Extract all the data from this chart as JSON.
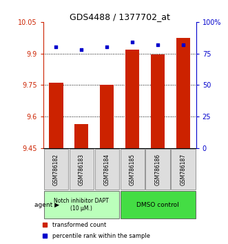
{
  "title": "GDS4488 / 1377702_at",
  "samples": [
    "GSM786182",
    "GSM786183",
    "GSM786184",
    "GSM786185",
    "GSM786186",
    "GSM786187"
  ],
  "bar_values": [
    9.76,
    9.565,
    9.75,
    9.92,
    9.895,
    9.975
  ],
  "dot_values_pct": [
    80,
    78,
    80,
    84,
    82,
    82
  ],
  "bar_bottom": 9.45,
  "ylim_left": [
    9.45,
    10.05
  ],
  "ylim_right": [
    0,
    100
  ],
  "yticks_left": [
    9.45,
    9.6,
    9.75,
    9.9,
    10.05
  ],
  "ytick_labels_left": [
    "9.45",
    "9.6",
    "9.75",
    "9.9",
    "10.05"
  ],
  "yticks_right": [
    0,
    25,
    50,
    75,
    100
  ],
  "ytick_labels_right": [
    "0",
    "25",
    "50",
    "75",
    "100%"
  ],
  "bar_color": "#cc2200",
  "dot_color": "#0000cc",
  "grid_color": "#000000",
  "group1_label": "Notch inhibitor DAPT\n(10 μM.)",
  "group2_label": "DMSO control",
  "group1_indices": [
    0,
    1,
    2
  ],
  "group2_indices": [
    3,
    4,
    5
  ],
  "group1_color": "#bbffbb",
  "group2_color": "#44dd44",
  "agent_label": "agent",
  "legend_bar_label": "transformed count",
  "legend_dot_label": "percentile rank within the sample",
  "bar_width": 0.55,
  "hgrid_values": [
    9.6,
    9.75,
    9.9
  ],
  "bg_color": "#ffffff"
}
